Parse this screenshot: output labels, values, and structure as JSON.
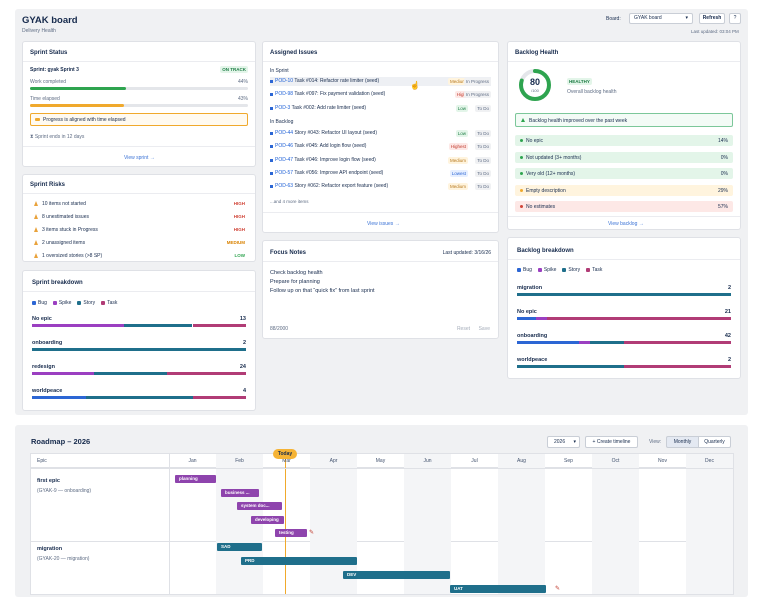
{
  "header": {
    "title": "GYAK board",
    "subtitle": "Delivery Health",
    "board_label": "Board:",
    "board_value": "GYAK board",
    "refresh": "Refresh",
    "help": "?",
    "last_updated": "Last updated: 03:04 PM"
  },
  "sprint_status": {
    "title": "Sprint Status",
    "sprint_name": "Sprint: gyak Sprint 3",
    "badge": "ON TRACK",
    "work_label": "Work completed",
    "work_pct": "44%",
    "work_value": 44,
    "elapsed_label": "Time elapsed",
    "elapsed_pct": "43%",
    "elapsed_value": 43,
    "notice": "Progress is aligned with time elapsed",
    "ends": "Sprint ends in 12 days",
    "link": "View sprint →"
  },
  "sprint_risks": {
    "title": "Sprint Risks",
    "items": [
      {
        "text": "10 items not started",
        "sev": "HIGH"
      },
      {
        "text": "8 unestimated issues",
        "sev": "HIGH"
      },
      {
        "text": "3 items stuck in Progress",
        "sev": "HIGH"
      },
      {
        "text": "2 unassigned items",
        "sev": "MEDIUM"
      },
      {
        "text": "1 oversized stories (>8 SP)",
        "sev": "LOW"
      }
    ]
  },
  "sprint_breakdown": {
    "title": "Sprint breakdown",
    "legend": [
      "Bug",
      "Spike",
      "Story",
      "Task"
    ],
    "rows": [
      {
        "name": "No epic",
        "count": "13"
      },
      {
        "name": "onboarding",
        "count": "2"
      },
      {
        "name": "redesign",
        "count": "24"
      },
      {
        "name": "worldpeace",
        "count": "4"
      }
    ]
  },
  "assigned": {
    "title": "Assigned Issues",
    "in_sprint": "In Sprint",
    "in_backlog": "In Backlog",
    "more": "...and 4 more items",
    "link": "View issues →",
    "sprint_items": [
      {
        "key": "POD-10",
        "text": "Task #014: Refactor rate limiter (seed)",
        "pri": "Medium",
        "status": "In Progress"
      },
      {
        "key": "POD-98",
        "text": "Task #097: Fix payment validation (seed)",
        "pri": "High",
        "status": "In Progress"
      },
      {
        "key": "POD-3",
        "text": "Task #002: Add rate limiter (seed)",
        "pri": "Low",
        "status": "To Do"
      }
    ],
    "backlog_items": [
      {
        "key": "POD-44",
        "text": "Story #043: Refactor UI layout (seed)",
        "pri": "Low",
        "status": "To Do"
      },
      {
        "key": "POD-46",
        "text": "Task #045: Add login flow (seed)",
        "pri": "Highest",
        "status": "To Do"
      },
      {
        "key": "POD-47",
        "text": "Task #046: Improve login flow (seed)",
        "pri": "Medium",
        "status": "To Do"
      },
      {
        "key": "POD-57",
        "text": "Task #056: Improve API endpoint (seed)",
        "pri": "Lowest",
        "status": "To Do"
      },
      {
        "key": "POD-63",
        "text": "Story #062: Refactor export feature (seed)",
        "pri": "Medium",
        "status": "To Do"
      }
    ]
  },
  "focus": {
    "title": "Focus Notes",
    "updated": "Last updated: 3/16/26",
    "lines": [
      "Check backlog health",
      "Prepare for planning",
      "Follow up on that “quick fix” from last sprint"
    ],
    "count": "88/2000",
    "reset": "Reset",
    "save": "Save"
  },
  "backlog_health": {
    "title": "Backlog Health",
    "score": "80",
    "score_of": "/100",
    "score_value": 80,
    "badge": "HEALTHY",
    "overall": "Overall backlog health",
    "trend": "Backlog health improved over the past week",
    "items": [
      {
        "text": "No epic",
        "pct": "14%"
      },
      {
        "text": "Not updated (3+ months)",
        "pct": "0%"
      },
      {
        "text": "Very old (12+ months)",
        "pct": "0%"
      },
      {
        "text": "Empty description",
        "pct": "29%"
      },
      {
        "text": "No estimates",
        "pct": "57%"
      }
    ],
    "link": "View backlog →"
  },
  "backlog_breakdown": {
    "title": "Backlog breakdown",
    "legend": [
      "Bug",
      "Spike",
      "Story",
      "Task"
    ],
    "rows": [
      {
        "name": "migration",
        "count": "2"
      },
      {
        "name": "No epic",
        "count": "21"
      },
      {
        "name": "onboarding",
        "count": "42"
      },
      {
        "name": "worldpeace",
        "count": "2"
      }
    ]
  },
  "roadmap": {
    "title": "Roadmap – 2026",
    "year": "2026",
    "create": "+ Create timeline",
    "view_label": "View:",
    "monthly": "Monthly",
    "quarterly": "Quarterly",
    "epic_col": "Epic",
    "today": "Today",
    "months": [
      "Jan",
      "Feb",
      "Mar",
      "Apr",
      "May",
      "Jun",
      "Jul",
      "Aug",
      "Sep",
      "Oct",
      "Nov",
      "Dec"
    ],
    "epics": [
      {
        "name": "first epic",
        "sub": "(GYAK-9 — onboarding)"
      },
      {
        "name": "migration",
        "sub": "(GYAK-20 — migration)"
      }
    ],
    "bars": [
      {
        "label": "planning",
        "color": "#8e44ad"
      },
      {
        "label": "business ...",
        "color": "#8e44ad"
      },
      {
        "label": "system doc...",
        "color": "#8e44ad"
      },
      {
        "label": "developing",
        "color": "#8e44ad"
      },
      {
        "label": "testing",
        "color": "#8e44ad"
      },
      {
        "label": "SAD",
        "color": "#1f6f8b"
      },
      {
        "label": "PRD",
        "color": "#1f6f8b"
      },
      {
        "label": "DEV",
        "color": "#1f6f8b"
      },
      {
        "label": "UAT",
        "color": "#1f6f8b"
      }
    ]
  }
}
